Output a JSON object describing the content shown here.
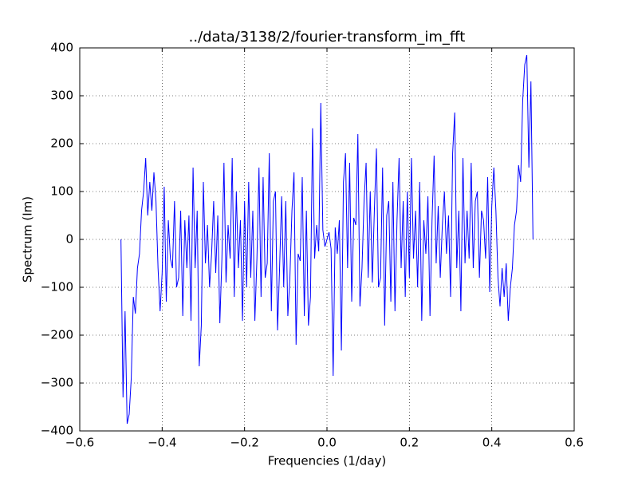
{
  "chart_data": {
    "type": "line",
    "title": "../data/3138/2/fourier-transform_im_fft",
    "xlabel": "Frequencies (1/day)",
    "ylabel": "Spectrum (Im)",
    "color": "#0000ff",
    "grid": true,
    "xlim": [
      -0.6,
      0.6
    ],
    "ylim": [
      -400,
      400
    ],
    "xticks": [
      {
        "value": -0.6,
        "label": "−0.6"
      },
      {
        "value": -0.4,
        "label": "−0.4"
      },
      {
        "value": -0.2,
        "label": "−0.2"
      },
      {
        "value": 0,
        "label": "0.0"
      },
      0.2,
      0.4,
      0.6
    ],
    "yticks": [
      {
        "value": -400,
        "label": "−400"
      },
      {
        "value": -300,
        "label": "−300"
      },
      {
        "value": -200,
        "label": "−200"
      },
      {
        "value": -100,
        "label": "−100"
      },
      0,
      100,
      200,
      300,
      400
    ],
    "x": [
      -0.5,
      -0.495,
      -0.49,
      -0.485,
      -0.48,
      -0.475,
      -0.47,
      -0.465,
      -0.46,
      -0.455,
      -0.45,
      -0.445,
      -0.44,
      -0.435,
      -0.43,
      -0.425,
      -0.42,
      -0.415,
      -0.41,
      -0.405,
      -0.4,
      -0.395,
      -0.39,
      -0.385,
      -0.38,
      -0.375,
      -0.37,
      -0.365,
      -0.36,
      -0.355,
      -0.35,
      -0.345,
      -0.34,
      -0.335,
      -0.33,
      -0.325,
      -0.32,
      -0.315,
      -0.31,
      -0.305,
      -0.3,
      -0.295,
      -0.29,
      -0.285,
      -0.28,
      -0.275,
      -0.27,
      -0.265,
      -0.26,
      -0.255,
      -0.25,
      -0.245,
      -0.24,
      -0.235,
      -0.23,
      -0.225,
      -0.22,
      -0.215,
      -0.21,
      -0.205,
      -0.2,
      -0.195,
      -0.19,
      -0.185,
      -0.18,
      -0.175,
      -0.17,
      -0.165,
      -0.16,
      -0.155,
      -0.15,
      -0.145,
      -0.14,
      -0.135,
      -0.13,
      -0.125,
      -0.12,
      -0.115,
      -0.11,
      -0.105,
      -0.1,
      -0.095,
      -0.09,
      -0.085,
      -0.08,
      -0.075,
      -0.07,
      -0.065,
      -0.06,
      -0.055,
      -0.05,
      -0.045,
      -0.04,
      -0.035,
      -0.03,
      -0.025,
      -0.02,
      -0.015,
      -0.01,
      -0.005,
      0,
      0.005,
      0.01,
      0.015,
      0.02,
      0.025,
      0.03,
      0.035,
      0.04,
      0.045,
      0.05,
      0.055,
      0.06,
      0.065,
      0.07,
      0.075,
      0.08,
      0.085,
      0.09,
      0.095,
      0.1,
      0.105,
      0.11,
      0.115,
      0.12,
      0.125,
      0.13,
      0.135,
      0.14,
      0.145,
      0.15,
      0.155,
      0.16,
      0.165,
      0.17,
      0.175,
      0.18,
      0.185,
      0.19,
      0.195,
      0.2,
      0.205,
      0.21,
      0.215,
      0.22,
      0.225,
      0.23,
      0.235,
      0.24,
      0.245,
      0.25,
      0.255,
      0.26,
      0.265,
      0.27,
      0.275,
      0.28,
      0.285,
      0.29,
      0.295,
      0.3,
      0.305,
      0.31,
      0.315,
      0.32,
      0.325,
      0.33,
      0.335,
      0.34,
      0.345,
      0.35,
      0.355,
      0.36,
      0.365,
      0.37,
      0.375,
      0.38,
      0.385,
      0.39,
      0.395,
      0.4,
      0.405,
      0.41,
      0.415,
      0.42,
      0.425,
      0.43,
      0.435,
      0.44,
      0.445,
      0.45,
      0.455,
      0.46,
      0.465,
      0.47,
      0.475,
      0.48,
      0.485,
      0.49,
      0.495,
      0.5
    ],
    "values": [
      0,
      -330,
      -150,
      -385,
      -365,
      -290,
      -120,
      -155,
      -60,
      -30,
      60,
      100,
      170,
      50,
      120,
      60,
      140,
      80,
      -60,
      -150,
      -70,
      110,
      -130,
      40,
      -40,
      -60,
      80,
      -100,
      -80,
      60,
      -160,
      40,
      -60,
      50,
      -170,
      150,
      -60,
      60,
      -265,
      -180,
      120,
      -50,
      30,
      -100,
      -30,
      80,
      -70,
      50,
      -175,
      -40,
      160,
      -90,
      30,
      -40,
      170,
      -120,
      100,
      -60,
      40,
      -170,
      80,
      -100,
      120,
      -80,
      60,
      -170,
      -40,
      150,
      -120,
      130,
      -80,
      -50,
      180,
      -150,
      80,
      100,
      -190,
      -60,
      90,
      -100,
      80,
      -160,
      -80,
      60,
      140,
      -220,
      -30,
      -45,
      130,
      -160,
      60,
      -180,
      -120,
      232,
      -40,
      30,
      -25,
      285,
      20,
      -15,
      0,
      15,
      -20,
      -285,
      25,
      -30,
      40,
      -232,
      120,
      180,
      -60,
      160,
      -130,
      45,
      30,
      220,
      -140,
      -60,
      80,
      160,
      -80,
      100,
      -90,
      60,
      190,
      -100,
      -80,
      150,
      -180,
      50,
      80,
      -130,
      120,
      -150,
      40,
      170,
      -60,
      80,
      -120,
      100,
      -80,
      170,
      -40,
      60,
      -100,
      120,
      -170,
      40,
      -30,
      90,
      -160,
      40,
      175,
      -50,
      70,
      -80,
      30,
      100,
      -30,
      50,
      -120,
      180,
      265,
      -60,
      60,
      -150,
      170,
      -50,
      60,
      -40,
      160,
      -60,
      80,
      100,
      -80,
      60,
      40,
      -40,
      130,
      -110,
      70,
      150,
      60,
      -80,
      -140,
      -60,
      -120,
      -50,
      -170,
      -100,
      -60,
      30,
      60,
      155,
      120,
      290,
      365,
      385,
      150,
      330,
      0
    ]
  }
}
